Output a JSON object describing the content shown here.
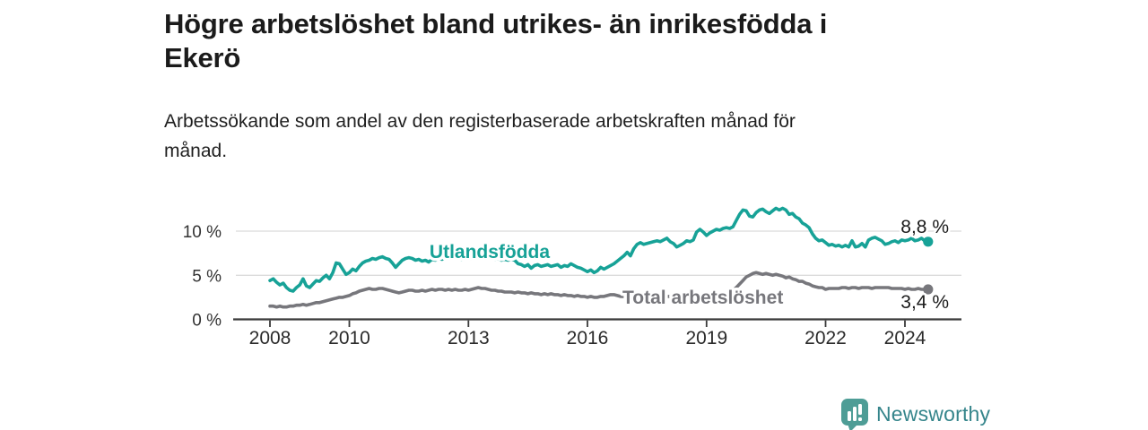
{
  "header": {
    "title_line1": "Högre arbetslöshet bland utrikes- än inrikesfödda i",
    "title_line2": "Ekerö",
    "subtitle_line1": "Arbetssökande som andel av den registerbaserade arbetskraften månad för",
    "subtitle_line2": "månad."
  },
  "footer": {
    "brand": "Newsworthy"
  },
  "colors": {
    "accent": "#17A297",
    "gray": "#77777C",
    "axis": "#3A3A3A",
    "grid": "#DBDBDB",
    "text": "#1B1B1B",
    "brand_text": "#35858B",
    "brand_icon": "#4E9D96"
  },
  "chart_data": {
    "type": "line",
    "title": "Högre arbetslöshet bland utrikes- än inrikesfödda i Ekerö",
    "subtitle": "Arbetssökande som andel av den registerbaserade arbetskraften månad för månad.",
    "frequency": "monthly",
    "start": {
      "year": 2008,
      "month": 1
    },
    "end": {
      "year": 2024,
      "month": 8
    },
    "ylim": [
      0,
      13
    ],
    "grid": "horizontal",
    "y_ticks": [
      {
        "value": 0,
        "label": "0 %"
      },
      {
        "value": 5,
        "label": "5 %"
      },
      {
        "value": 10,
        "label": "10 %"
      }
    ],
    "x_ticks": [
      {
        "year": 2008,
        "label": "2008"
      },
      {
        "year": 2010,
        "label": "2010"
      },
      {
        "year": 2013,
        "label": "2013"
      },
      {
        "year": 2016,
        "label": "2016"
      },
      {
        "year": 2019,
        "label": "2019"
      },
      {
        "year": 2022,
        "label": "2022"
      },
      {
        "year": 2024,
        "label": "2024"
      }
    ],
    "series": [
      {
        "name": "Utlandsfödda",
        "color": "#17A297",
        "end_label": "8,8 %",
        "end_value": 8.8,
        "values": [
          4.4,
          4.6,
          4.2,
          3.9,
          4.1,
          3.6,
          3.3,
          3.2,
          3.6,
          3.9,
          4.6,
          3.8,
          3.6,
          4.0,
          4.4,
          4.3,
          4.7,
          5.0,
          4.6,
          5.3,
          6.4,
          6.3,
          5.7,
          5.1,
          5.3,
          5.7,
          5.5,
          6.0,
          6.4,
          6.6,
          6.7,
          6.9,
          6.8,
          7.0,
          7.1,
          6.9,
          6.8,
          6.4,
          5.9,
          6.3,
          6.7,
          6.9,
          7.0,
          6.9,
          6.7,
          6.8,
          6.6,
          6.7,
          6.5,
          6.8,
          6.7,
          6.9,
          6.8,
          7.0,
          6.9,
          6.8,
          7.0,
          6.9,
          6.8,
          6.9,
          6.8,
          6.9,
          7.0,
          6.9,
          7.1,
          7.0,
          6.9,
          7.0,
          6.8,
          6.9,
          6.7,
          6.8,
          6.7,
          6.8,
          6.7,
          6.3,
          6.2,
          6.0,
          6.2,
          5.8,
          6.1,
          6.2,
          6.0,
          6.1,
          6.2,
          6.0,
          6.1,
          6.2,
          5.9,
          6.1,
          6.0,
          6.3,
          6.1,
          5.9,
          5.8,
          5.6,
          5.4,
          5.6,
          5.3,
          5.5,
          5.9,
          5.7,
          5.9,
          6.1,
          6.3,
          6.6,
          6.9,
          7.2,
          7.6,
          7.2,
          8.0,
          8.5,
          8.7,
          8.5,
          8.6,
          8.7,
          8.8,
          8.9,
          8.8,
          9.0,
          9.2,
          8.8,
          8.6,
          8.2,
          8.4,
          8.6,
          8.9,
          8.8,
          9.0,
          9.9,
          10.2,
          9.9,
          9.5,
          9.8,
          10.0,
          10.2,
          10.1,
          10.3,
          10.4,
          10.3,
          10.5,
          11.2,
          11.9,
          12.4,
          12.3,
          11.7,
          11.6,
          12.1,
          12.4,
          12.5,
          12.2,
          12.0,
          12.3,
          12.6,
          12.4,
          12.6,
          12.4,
          11.9,
          12.0,
          11.6,
          11.4,
          10.9,
          10.7,
          10.4,
          9.7,
          9.2,
          8.9,
          9.0,
          8.7,
          8.4,
          8.5,
          8.3,
          8.4,
          8.2,
          8.4,
          8.2,
          8.9,
          8.2,
          8.3,
          8.6,
          8.2,
          9.0,
          9.2,
          9.3,
          9.1,
          8.9,
          8.5,
          8.6,
          8.8,
          8.9,
          8.7,
          9.0,
          8.9,
          9.0,
          9.2,
          8.9,
          9.0,
          9.2,
          8.9,
          8.8
        ]
      },
      {
        "name": "Total arbetslöshet",
        "color": "#77777C",
        "end_label": "3,4 %",
        "end_value": 3.4,
        "values": [
          1.5,
          1.5,
          1.4,
          1.5,
          1.4,
          1.4,
          1.5,
          1.5,
          1.6,
          1.6,
          1.7,
          1.6,
          1.7,
          1.8,
          1.9,
          1.9,
          2.0,
          2.1,
          2.2,
          2.3,
          2.4,
          2.5,
          2.5,
          2.6,
          2.7,
          2.9,
          3.0,
          3.2,
          3.3,
          3.4,
          3.5,
          3.4,
          3.4,
          3.5,
          3.5,
          3.4,
          3.3,
          3.2,
          3.1,
          3.0,
          3.1,
          3.2,
          3.3,
          3.3,
          3.2,
          3.2,
          3.3,
          3.2,
          3.3,
          3.4,
          3.3,
          3.4,
          3.4,
          3.3,
          3.4,
          3.3,
          3.4,
          3.3,
          3.3,
          3.4,
          3.3,
          3.4,
          3.5,
          3.6,
          3.5,
          3.5,
          3.4,
          3.3,
          3.3,
          3.2,
          3.2,
          3.1,
          3.1,
          3.1,
          3.0,
          3.1,
          3.0,
          3.0,
          2.9,
          3.0,
          2.9,
          2.9,
          2.8,
          2.9,
          2.8,
          2.9,
          2.8,
          2.8,
          2.7,
          2.8,
          2.7,
          2.7,
          2.6,
          2.7,
          2.6,
          2.6,
          2.5,
          2.6,
          2.5,
          2.5,
          2.6,
          2.6,
          2.7,
          2.8,
          2.8,
          2.7,
          2.6,
          2.6,
          2.5,
          2.6,
          2.6,
          2.6,
          2.5,
          2.6,
          2.6,
          2.7,
          2.6,
          2.6,
          2.6,
          2.7,
          2.6,
          2.6,
          2.5,
          2.5,
          2.5,
          2.6,
          2.6,
          2.6,
          2.6,
          2.7,
          2.7,
          2.8,
          2.7,
          2.8,
          2.8,
          2.9,
          2.9,
          3.0,
          3.0,
          3.1,
          3.3,
          3.6,
          4.0,
          4.4,
          4.8,
          5.0,
          5.2,
          5.3,
          5.2,
          5.1,
          5.2,
          5.1,
          5.0,
          5.1,
          5.0,
          4.9,
          4.7,
          4.8,
          4.6,
          4.5,
          4.3,
          4.3,
          4.1,
          4.0,
          3.8,
          3.7,
          3.6,
          3.6,
          3.4,
          3.5,
          3.5,
          3.5,
          3.5,
          3.6,
          3.6,
          3.5,
          3.6,
          3.6,
          3.5,
          3.6,
          3.6,
          3.6,
          3.5,
          3.6,
          3.6,
          3.6,
          3.6,
          3.6,
          3.5,
          3.5,
          3.5,
          3.5,
          3.4,
          3.5,
          3.4,
          3.4,
          3.5,
          3.4,
          3.4,
          3.4
        ]
      }
    ]
  }
}
